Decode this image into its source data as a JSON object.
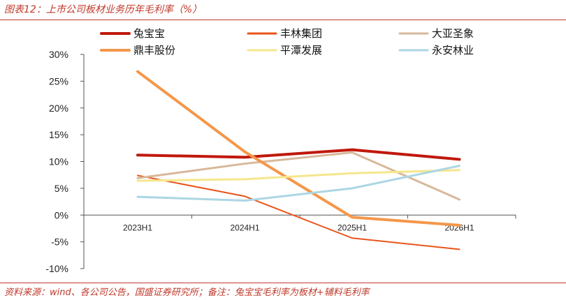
{
  "header": {
    "title": "图表12：上市公司板材业务历年毛利率（%）"
  },
  "footer": {
    "source": "资料来源：wind、各公司公告，国盛证券研究所；备注：兔宝宝毛利率为板材+辅料毛利率"
  },
  "chart_data": {
    "type": "line",
    "x": [
      "2023H1",
      "2024H1",
      "2025H1",
      "2026H1"
    ],
    "ylim": [
      -10,
      30
    ],
    "yticks": [
      -10,
      -5,
      0,
      5,
      10,
      15,
      20,
      25,
      30
    ],
    "ytick_labels": [
      "-10%",
      "-5%",
      "0%",
      "5%",
      "10%",
      "15%",
      "20%",
      "25%",
      "30%"
    ],
    "grid": false,
    "legend_position": "top",
    "series": [
      {
        "name": "兔宝宝",
        "color": "#c0180c",
        "width": 4,
        "values": [
          11.2,
          10.8,
          12.2,
          10.4
        ]
      },
      {
        "name": "丰林集团",
        "color": "#e8541a",
        "width": 2,
        "values": [
          7.4,
          3.5,
          -4.3,
          -6.4
        ]
      },
      {
        "name": "大亚圣象",
        "color": "#d7b89a",
        "width": 3,
        "values": [
          6.9,
          9.6,
          11.7,
          2.9
        ]
      },
      {
        "name": "鼎丰股份",
        "color": "#f4974a",
        "width": 4,
        "values": [
          26.8,
          11.8,
          -0.4,
          -1.9
        ]
      },
      {
        "name": "平潭发展",
        "color": "#f6e68c",
        "width": 3,
        "values": [
          6.4,
          6.7,
          7.8,
          8.4
        ]
      },
      {
        "name": "永安林业",
        "color": "#acd6e4",
        "width": 3,
        "values": [
          3.4,
          2.7,
          5.0,
          9.2
        ]
      }
    ]
  }
}
